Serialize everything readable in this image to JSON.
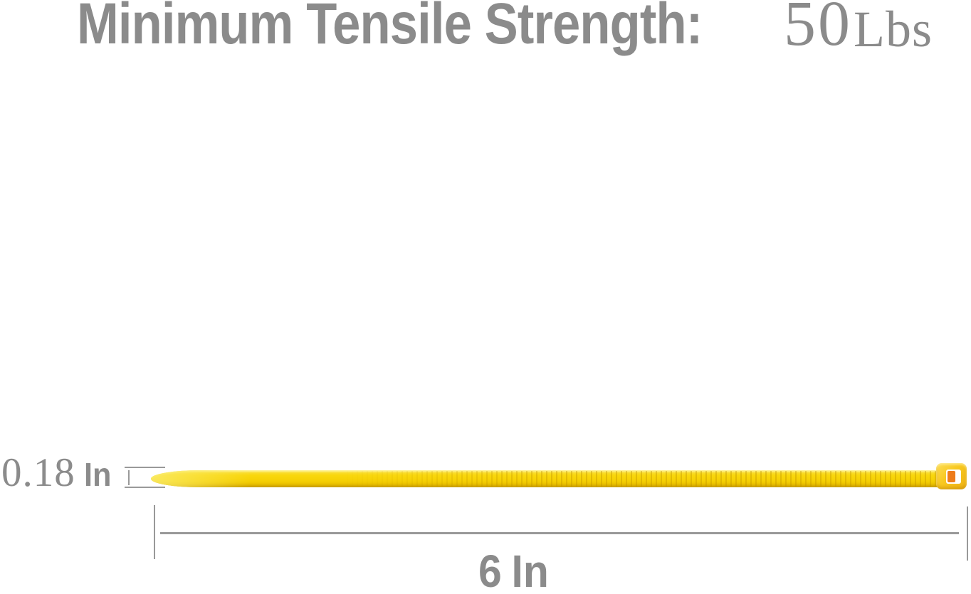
{
  "figure": {
    "title": {
      "label": "Minimum Tensile Strength:",
      "value": "50",
      "unit": "Lbs"
    },
    "width_dimension": {
      "value": "0.18",
      "unit": "In"
    },
    "length_dimension": {
      "value": "6",
      "unit": "In"
    },
    "illustration": "yellow-cable-tie",
    "colors": {
      "text_gray": "#8b8b8b",
      "line_gray": "#999999",
      "tie_yellow": "#f5d004",
      "tie_head": "#f8c81f",
      "tie_slot_orange": "#ee7c1b",
      "background": "#ffffff"
    }
  }
}
